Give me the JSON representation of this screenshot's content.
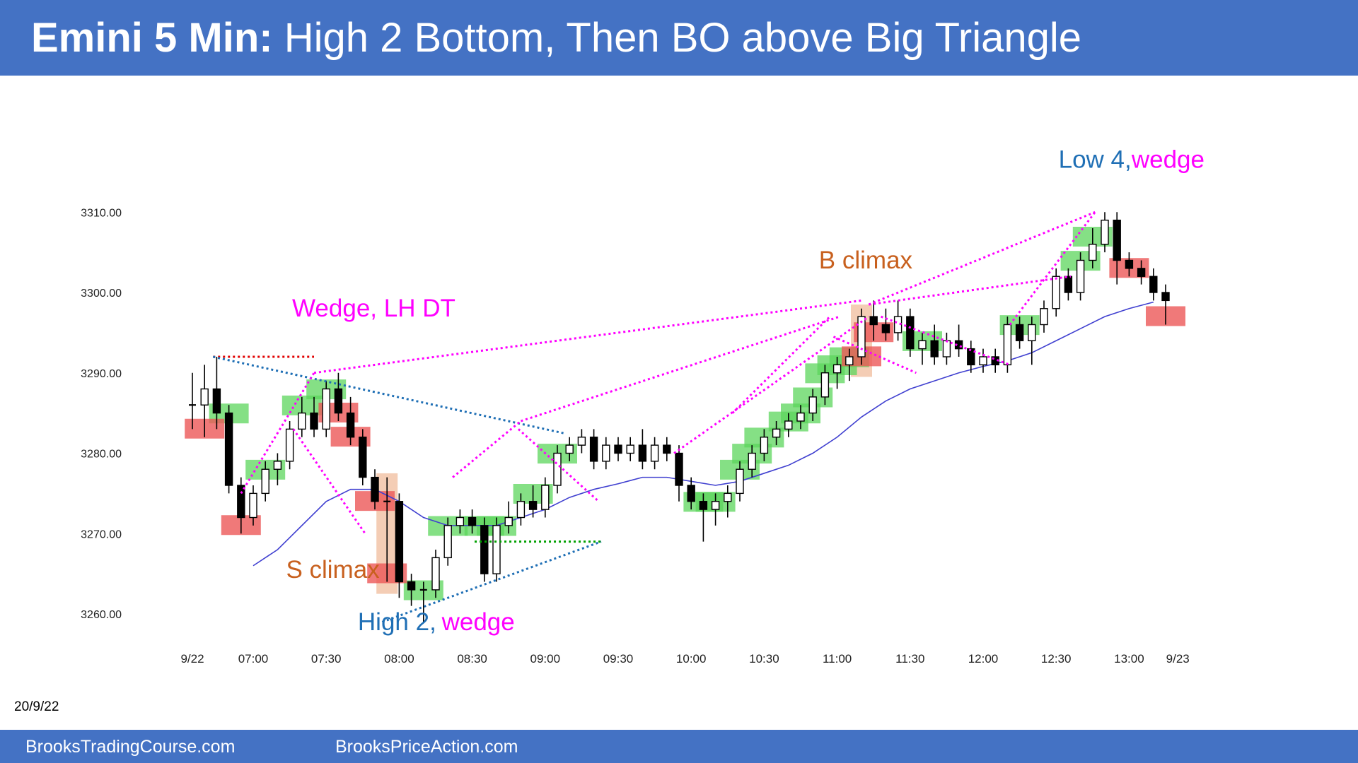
{
  "header": {
    "title_bold": "Emini 5 Min:",
    "title_rest": "High 2 Bottom, Then BO above Big Triangle"
  },
  "footer": {
    "left": "BrooksTradingCourse.com",
    "right": "BrooksPriceAction.com"
  },
  "date_label": "20/9/22",
  "colors": {
    "header_bg": "#4472c4",
    "bull_signal": "#5cd65c",
    "bear_signal": "#ec5757",
    "climax_shade": "#f2c4a8",
    "ema": "#4040d0",
    "magenta": "#ff00ff",
    "blue": "#1f6fb5",
    "orange": "#c8601e",
    "red_dotted": "#e00000",
    "green_dotted": "#00a000"
  },
  "chart_data": {
    "type": "candlestick",
    "title": "",
    "ylim": [
      3255,
      3313
    ],
    "yticks": [
      3260,
      3270,
      3280,
      3290,
      3300,
      3310
    ],
    "ytick_labels": [
      "3260.00",
      "3270.00",
      "3280.00",
      "3290.00",
      "3300.00",
      "3310.00"
    ],
    "xticks": [
      {
        "bar": 0,
        "label": "9/22"
      },
      {
        "bar": 5,
        "label": "07:00"
      },
      {
        "bar": 11,
        "label": "07:30"
      },
      {
        "bar": 17,
        "label": "08:00"
      },
      {
        "bar": 23,
        "label": "08:30"
      },
      {
        "bar": 29,
        "label": "09:00"
      },
      {
        "bar": 35,
        "label": "09:30"
      },
      {
        "bar": 41,
        "label": "10:00"
      },
      {
        "bar": 47,
        "label": "10:30"
      },
      {
        "bar": 53,
        "label": "11:00"
      },
      {
        "bar": 59,
        "label": "11:30"
      },
      {
        "bar": 65,
        "label": "12:00"
      },
      {
        "bar": 71,
        "label": "12:30"
      },
      {
        "bar": 77,
        "label": "13:00"
      },
      {
        "bar": 81,
        "label": "9/23"
      }
    ],
    "candles": [
      {
        "o": 3286,
        "h": 3290,
        "l": 3283,
        "c": 3286
      },
      {
        "o": 3286,
        "h": 3291,
        "l": 3282,
        "c": 3288
      },
      {
        "o": 3288,
        "h": 3292,
        "l": 3283,
        "c": 3285
      },
      {
        "o": 3285,
        "h": 3286,
        "l": 3275,
        "c": 3276
      },
      {
        "o": 3276,
        "h": 3277,
        "l": 3270,
        "c": 3272
      },
      {
        "o": 3272,
        "h": 3276,
        "l": 3271,
        "c": 3275
      },
      {
        "o": 3275,
        "h": 3279,
        "l": 3274,
        "c": 3278
      },
      {
        "o": 3278,
        "h": 3280,
        "l": 3276,
        "c": 3279
      },
      {
        "o": 3279,
        "h": 3284,
        "l": 3278,
        "c": 3283
      },
      {
        "o": 3283,
        "h": 3287,
        "l": 3282,
        "c": 3285
      },
      {
        "o": 3285,
        "h": 3287,
        "l": 3282,
        "c": 3283
      },
      {
        "o": 3283,
        "h": 3289,
        "l": 3282,
        "c": 3288
      },
      {
        "o": 3288,
        "h": 3290,
        "l": 3284,
        "c": 3285
      },
      {
        "o": 3285,
        "h": 3287,
        "l": 3281,
        "c": 3282
      },
      {
        "o": 3282,
        "h": 3283,
        "l": 3276,
        "c": 3277
      },
      {
        "o": 3277,
        "h": 3278,
        "l": 3273,
        "c": 3274
      },
      {
        "o": 3274,
        "h": 3277,
        "l": 3264,
        "c": 3274
      },
      {
        "o": 3274,
        "h": 3275,
        "l": 3262,
        "c": 3264
      },
      {
        "o": 3264,
        "h": 3265,
        "l": 3261,
        "c": 3263
      },
      {
        "o": 3263,
        "h": 3264,
        "l": 3259,
        "c": 3263
      },
      {
        "o": 3263,
        "h": 3268,
        "l": 3262,
        "c": 3267
      },
      {
        "o": 3267,
        "h": 3272,
        "l": 3266,
        "c": 3271
      },
      {
        "o": 3271,
        "h": 3273,
        "l": 3270,
        "c": 3272
      },
      {
        "o": 3272,
        "h": 3273,
        "l": 3270,
        "c": 3271
      },
      {
        "o": 3271,
        "h": 3272,
        "l": 3264,
        "c": 3265
      },
      {
        "o": 3265,
        "h": 3272,
        "l": 3264,
        "c": 3271
      },
      {
        "o": 3271,
        "h": 3274,
        "l": 3270,
        "c": 3272
      },
      {
        "o": 3272,
        "h": 3275,
        "l": 3271,
        "c": 3274
      },
      {
        "o": 3274,
        "h": 3276,
        "l": 3272,
        "c": 3273
      },
      {
        "o": 3273,
        "h": 3277,
        "l": 3272,
        "c": 3276
      },
      {
        "o": 3276,
        "h": 3281,
        "l": 3275,
        "c": 3280
      },
      {
        "o": 3280,
        "h": 3282,
        "l": 3279,
        "c": 3281
      },
      {
        "o": 3281,
        "h": 3283,
        "l": 3280,
        "c": 3282
      },
      {
        "o": 3282,
        "h": 3283,
        "l": 3278,
        "c": 3279
      },
      {
        "o": 3279,
        "h": 3282,
        "l": 3278,
        "c": 3281
      },
      {
        "o": 3281,
        "h": 3282,
        "l": 3279,
        "c": 3280
      },
      {
        "o": 3280,
        "h": 3282,
        "l": 3279,
        "c": 3281
      },
      {
        "o": 3281,
        "h": 3283,
        "l": 3278,
        "c": 3279
      },
      {
        "o": 3279,
        "h": 3282,
        "l": 3278,
        "c": 3281
      },
      {
        "o": 3281,
        "h": 3282,
        "l": 3279,
        "c": 3280
      },
      {
        "o": 3280,
        "h": 3281,
        "l": 3274,
        "c": 3276
      },
      {
        "o": 3276,
        "h": 3277,
        "l": 3273,
        "c": 3274
      },
      {
        "o": 3274,
        "h": 3275,
        "l": 3269,
        "c": 3273
      },
      {
        "o": 3273,
        "h": 3275,
        "l": 3271,
        "c": 3274
      },
      {
        "o": 3274,
        "h": 3276,
        "l": 3272,
        "c": 3275
      },
      {
        "o": 3275,
        "h": 3279,
        "l": 3274,
        "c": 3278
      },
      {
        "o": 3278,
        "h": 3281,
        "l": 3277,
        "c": 3280
      },
      {
        "o": 3280,
        "h": 3283,
        "l": 3279,
        "c": 3282
      },
      {
        "o": 3282,
        "h": 3284,
        "l": 3281,
        "c": 3283
      },
      {
        "o": 3283,
        "h": 3285,
        "l": 3282,
        "c": 3284
      },
      {
        "o": 3284,
        "h": 3286,
        "l": 3283,
        "c": 3285
      },
      {
        "o": 3285,
        "h": 3288,
        "l": 3284,
        "c": 3287
      },
      {
        "o": 3287,
        "h": 3291,
        "l": 3286,
        "c": 3290
      },
      {
        "o": 3290,
        "h": 3292,
        "l": 3288,
        "c": 3291
      },
      {
        "o": 3291,
        "h": 3293,
        "l": 3289,
        "c": 3292
      },
      {
        "o": 3292,
        "h": 3298,
        "l": 3291,
        "c": 3297
      },
      {
        "o": 3297,
        "h": 3299,
        "l": 3294,
        "c": 3296
      },
      {
        "o": 3296,
        "h": 3298,
        "l": 3294,
        "c": 3295
      },
      {
        "o": 3295,
        "h": 3299,
        "l": 3294,
        "c": 3297
      },
      {
        "o": 3297,
        "h": 3298,
        "l": 3292,
        "c": 3293
      },
      {
        "o": 3293,
        "h": 3295,
        "l": 3291,
        "c": 3294
      },
      {
        "o": 3294,
        "h": 3296,
        "l": 3291,
        "c": 3292
      },
      {
        "o": 3292,
        "h": 3295,
        "l": 3291,
        "c": 3294
      },
      {
        "o": 3294,
        "h": 3296,
        "l": 3292,
        "c": 3293
      },
      {
        "o": 3293,
        "h": 3294,
        "l": 3290,
        "c": 3291
      },
      {
        "o": 3291,
        "h": 3293,
        "l": 3290,
        "c": 3292
      },
      {
        "o": 3292,
        "h": 3293,
        "l": 3290,
        "c": 3291
      },
      {
        "o": 3291,
        "h": 3297,
        "l": 3290,
        "c": 3296
      },
      {
        "o": 3296,
        "h": 3297,
        "l": 3293,
        "c": 3294
      },
      {
        "o": 3294,
        "h": 3297,
        "l": 3291,
        "c": 3296
      },
      {
        "o": 3296,
        "h": 3299,
        "l": 3295,
        "c": 3298
      },
      {
        "o": 3298,
        "h": 3303,
        "l": 3297,
        "c": 3302
      },
      {
        "o": 3302,
        "h": 3303,
        "l": 3299,
        "c": 3300
      },
      {
        "o": 3300,
        "h": 3305,
        "l": 3299,
        "c": 3304
      },
      {
        "o": 3304,
        "h": 3308,
        "l": 3303,
        "c": 3306
      },
      {
        "o": 3306,
        "h": 3310,
        "l": 3305,
        "c": 3309
      },
      {
        "o": 3309,
        "h": 3310,
        "l": 3301,
        "c": 3304
      },
      {
        "o": 3304,
        "h": 3305,
        "l": 3302,
        "c": 3303
      },
      {
        "o": 3303,
        "h": 3304,
        "l": 3301,
        "c": 3302
      },
      {
        "o": 3302,
        "h": 3303,
        "l": 3299,
        "c": 3300
      },
      {
        "o": 3300,
        "h": 3301,
        "l": 3296,
        "c": 3299
      }
    ],
    "ema": [
      {
        "bar": 5,
        "y": 3266
      },
      {
        "bar": 7,
        "y": 3268
      },
      {
        "bar": 9,
        "y": 3271
      },
      {
        "bar": 11,
        "y": 3274
      },
      {
        "bar": 13,
        "y": 3275.5
      },
      {
        "bar": 15,
        "y": 3275.5
      },
      {
        "bar": 17,
        "y": 3274
      },
      {
        "bar": 19,
        "y": 3272
      },
      {
        "bar": 21,
        "y": 3271
      },
      {
        "bar": 23,
        "y": 3271
      },
      {
        "bar": 25,
        "y": 3271
      },
      {
        "bar": 27,
        "y": 3272
      },
      {
        "bar": 29,
        "y": 3273
      },
      {
        "bar": 31,
        "y": 3274.5
      },
      {
        "bar": 33,
        "y": 3275.5
      },
      {
        "bar": 35,
        "y": 3276.2
      },
      {
        "bar": 37,
        "y": 3277
      },
      {
        "bar": 39,
        "y": 3277
      },
      {
        "bar": 41,
        "y": 3276.5
      },
      {
        "bar": 43,
        "y": 3276
      },
      {
        "bar": 45,
        "y": 3276.5
      },
      {
        "bar": 47,
        "y": 3277.5
      },
      {
        "bar": 49,
        "y": 3278.5
      },
      {
        "bar": 51,
        "y": 3280
      },
      {
        "bar": 53,
        "y": 3282
      },
      {
        "bar": 55,
        "y": 3284.5
      },
      {
        "bar": 57,
        "y": 3286.5
      },
      {
        "bar": 59,
        "y": 3288
      },
      {
        "bar": 61,
        "y": 3289
      },
      {
        "bar": 63,
        "y": 3290
      },
      {
        "bar": 65,
        "y": 3290.8
      },
      {
        "bar": 67,
        "y": 3291.5
      },
      {
        "bar": 69,
        "y": 3292.5
      },
      {
        "bar": 71,
        "y": 3294
      },
      {
        "bar": 73,
        "y": 3295.5
      },
      {
        "bar": 75,
        "y": 3297
      },
      {
        "bar": 77,
        "y": 3298
      },
      {
        "bar": 79,
        "y": 3298.8
      }
    ],
    "bull_signals": [
      3,
      6,
      9,
      11,
      19,
      21,
      24,
      25,
      28,
      30,
      42,
      43,
      45,
      46,
      47,
      49,
      50,
      51,
      52,
      53,
      54,
      60,
      68,
      73,
      74
    ],
    "bear_signals": [
      1,
      4,
      12,
      13,
      15,
      16,
      55,
      56,
      77,
      80
    ],
    "climax_bars": [
      16,
      55
    ],
    "annotations": [
      {
        "text": "Wedge, LH DT",
        "color": "#ff00ff",
        "x_bar": 8.2,
        "y": 3297
      },
      {
        "text": "S climax",
        "color": "#c8601e",
        "x_bar": 7.7,
        "y": 3264.5
      },
      {
        "text": "High 2, ",
        "color": "#1f6fb5",
        "x_bar": 13.6,
        "y": 3258
      },
      {
        "text": "wedge",
        "color": "#ff00ff",
        "x_bar": 20.5,
        "y": 3258
      },
      {
        "text": "B climax",
        "color": "#c8601e",
        "x_bar": 51.5,
        "y": 3303
      },
      {
        "text": "Low 4, ",
        "color": "#1f6fb5",
        "x_bar": 71.2,
        "y": 3315.5
      },
      {
        "text": "wedge",
        "color": "#ff00ff",
        "x_bar": 77.2,
        "y": 3315.5
      }
    ]
  }
}
